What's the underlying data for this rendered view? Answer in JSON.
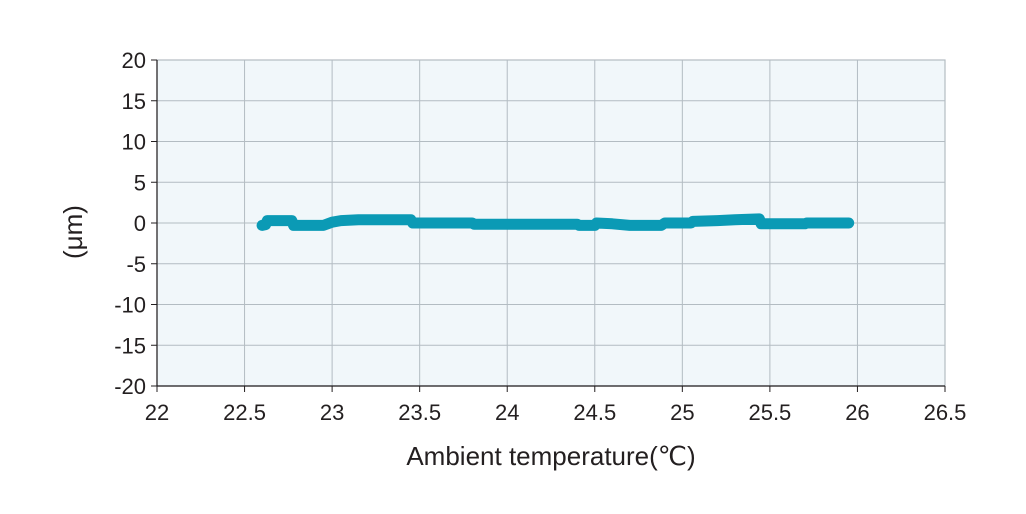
{
  "chart_data": {
    "type": "line",
    "title": "",
    "xlabel": "Ambient temperature(℃)",
    "ylabel": "(μm)",
    "xlim": [
      22,
      26.5
    ],
    "ylim": [
      -20,
      20
    ],
    "x_ticks": [
      "22",
      "22.5",
      "23",
      "23.5",
      "24",
      "24.5",
      "25",
      "25.5",
      "26",
      "26.5"
    ],
    "y_ticks": [
      "20",
      "15",
      "10",
      "5",
      "0",
      "-5",
      "-10",
      "-15",
      "-20"
    ],
    "grid": true,
    "legend": "none",
    "series": [
      {
        "color": "#0b9ab5",
        "points": [
          [
            22.6,
            -0.3
          ],
          [
            22.62,
            -0.2
          ],
          [
            22.63,
            0.3
          ],
          [
            22.77,
            0.3
          ],
          [
            22.78,
            -0.3
          ],
          [
            22.95,
            -0.3
          ],
          [
            23.0,
            0.1
          ],
          [
            23.05,
            0.3
          ],
          [
            23.15,
            0.4
          ],
          [
            23.3,
            0.4
          ],
          [
            23.45,
            0.4
          ],
          [
            23.46,
            0.0
          ],
          [
            23.8,
            0.0
          ],
          [
            23.81,
            -0.15
          ],
          [
            24.1,
            -0.15
          ],
          [
            24.4,
            -0.15
          ],
          [
            24.41,
            -0.3
          ],
          [
            24.5,
            -0.3
          ],
          [
            24.51,
            0.0
          ],
          [
            24.6,
            -0.1
          ],
          [
            24.7,
            -0.3
          ],
          [
            24.88,
            -0.3
          ],
          [
            24.9,
            0.0
          ],
          [
            25.05,
            0.0
          ],
          [
            25.06,
            0.2
          ],
          [
            25.2,
            0.3
          ],
          [
            25.3,
            0.4
          ],
          [
            25.44,
            0.5
          ],
          [
            25.45,
            -0.1
          ],
          [
            25.7,
            -0.1
          ],
          [
            25.71,
            0.0
          ],
          [
            25.95,
            0.0
          ]
        ]
      }
    ]
  }
}
